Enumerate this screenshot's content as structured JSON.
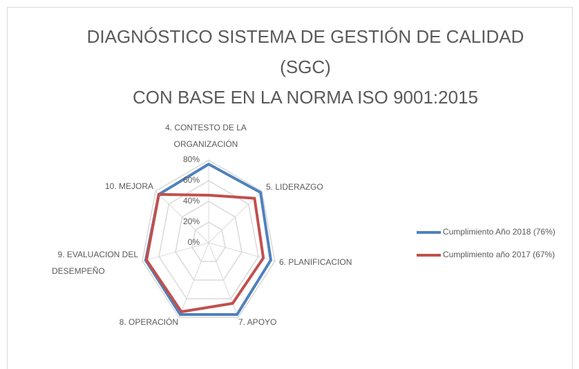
{
  "chart_data": {
    "type": "radar",
    "title": [
      "DIAGNÓSTICO SISTEMA DE GESTIÓN DE CALIDAD",
      "(SGC)",
      "CON BASE EN LA NORMA  ISO 9001:2015"
    ],
    "categories": [
      [
        "4. CONTESTO DE LA",
        "ORGANIZACIÓN"
      ],
      "5. LIDERAZGO",
      "6. PLANIFICACION",
      "7. APOYO",
      "8. OPERACIÓN",
      [
        "9. EVALUACION DEL",
        "DESEMPEÑO"
      ],
      "10. MEJORA"
    ],
    "series": [
      {
        "name": "Cumplimiento Año 2018 (76%)",
        "color": "#4f81bd",
        "values": [
          76,
          78,
          75,
          77,
          77,
          76,
          75
        ]
      },
      {
        "name": "Cumplimiento año 2017 (67%)",
        "color": "#c0504d",
        "values": [
          46,
          69,
          66,
          65,
          74,
          75,
          75
        ]
      }
    ],
    "ylim": [
      0,
      80
    ],
    "yticks": [
      {
        "value": 0,
        "label": "0%"
      },
      {
        "value": 20,
        "label": "20%"
      },
      {
        "value": 40,
        "label": "40%"
      },
      {
        "value": 60,
        "label": "60%"
      },
      {
        "value": 80,
        "label": "80%"
      }
    ],
    "grid": true,
    "legend": "right"
  }
}
